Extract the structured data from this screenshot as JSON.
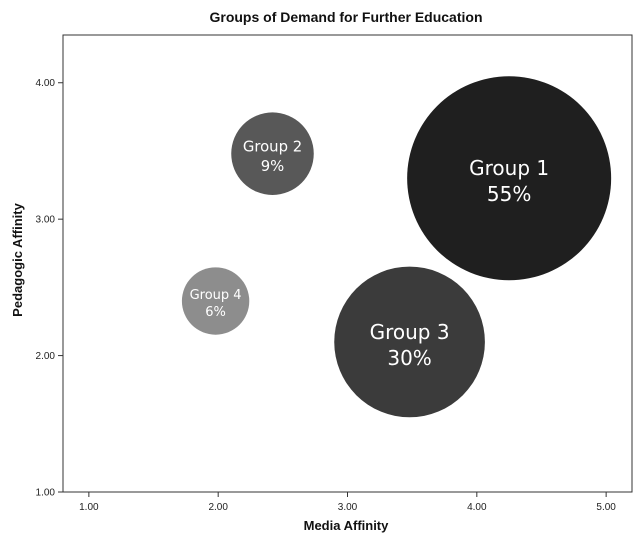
{
  "chart_data": {
    "type": "scatter",
    "title": "Groups of Demand for Further Education",
    "xlabel": "Media Affinity",
    "ylabel": "Pedagogic Affinity",
    "xlim": [
      0.8,
      5.2
    ],
    "ylim": [
      1.0,
      4.35
    ],
    "x_ticks": [
      "1.00",
      "2.00",
      "3.00",
      "4.00",
      "5.00"
    ],
    "y_ticks": [
      "1.00",
      "2.00",
      "3.00",
      "4.00"
    ],
    "grid": false,
    "points": [
      {
        "name": "Group 1",
        "label": "55%",
        "x": 4.25,
        "y": 3.3,
        "share": 55,
        "color": "#1f1f1f"
      },
      {
        "name": "Group 2",
        "label": "9%",
        "x": 2.42,
        "y": 3.48,
        "share": 9,
        "color": "#585858"
      },
      {
        "name": "Group 3",
        "label": "30%",
        "x": 3.48,
        "y": 2.1,
        "share": 30,
        "color": "#3b3b3b"
      },
      {
        "name": "Group 4",
        "label": "6%",
        "x": 1.98,
        "y": 2.4,
        "share": 6,
        "color": "#8d8d8d"
      }
    ]
  }
}
